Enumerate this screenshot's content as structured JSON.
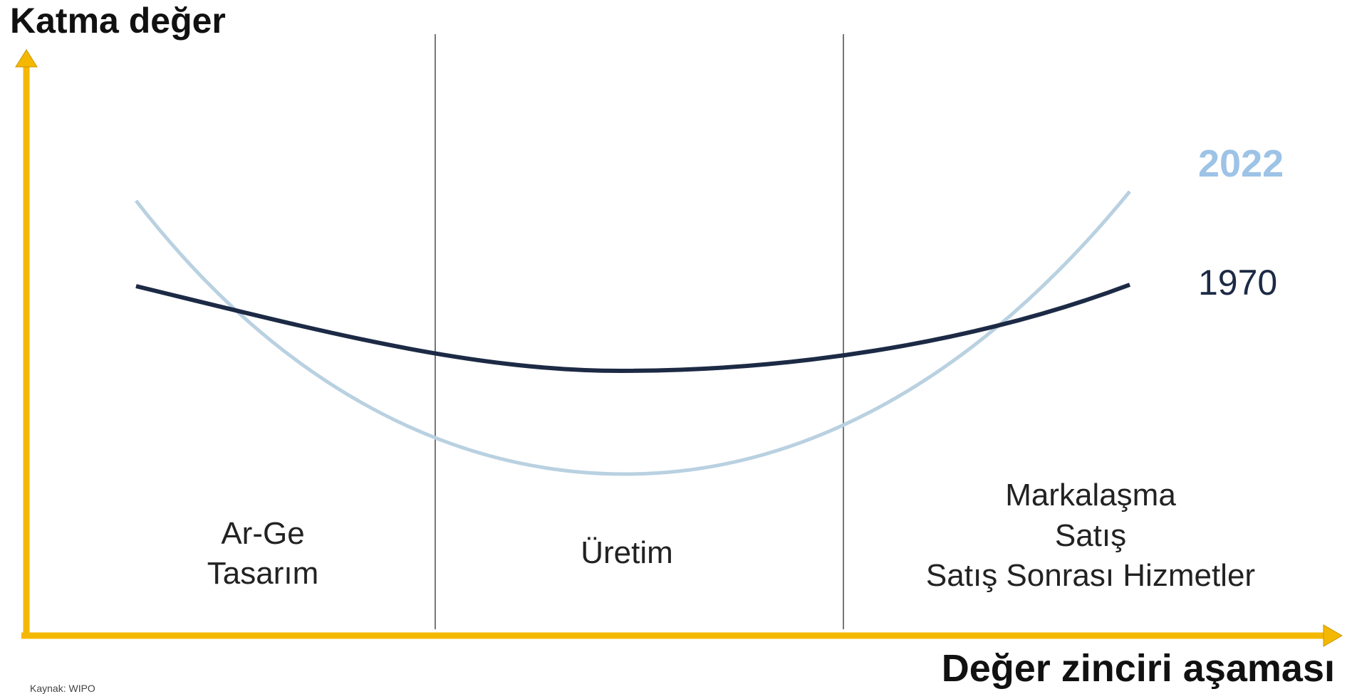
{
  "title": "Katma değer",
  "x_axis_label": "Değer zinciri aşaması",
  "source": "Kaynak: WIPO",
  "curves": [
    {
      "label": "2022"
    },
    {
      "label": "1970"
    }
  ],
  "stages": [
    {
      "lines": [
        "Ar-Ge",
        "Tasarım"
      ]
    },
    {
      "lines": [
        "Üretim"
      ]
    },
    {
      "lines": [
        "Markalaşma",
        "Satış",
        "Satış Sonrası Hizmetler"
      ]
    }
  ]
}
